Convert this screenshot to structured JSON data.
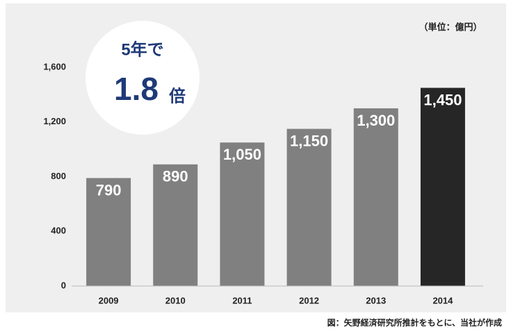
{
  "chart_data": {
    "type": "bar",
    "unit_label": "（単位：億円）",
    "annotation": {
      "line1": "5年で",
      "figure": "1.8",
      "suffix": "倍"
    },
    "source": "図：矢野経済研究所推計をもとに、当社が作成",
    "categories": [
      "2009",
      "2010",
      "2011",
      "2012",
      "2013",
      "2014"
    ],
    "values": [
      790,
      890,
      1050,
      1150,
      1300,
      1450
    ],
    "value_labels": [
      "790",
      "890",
      "1,050",
      "1,150",
      "1,300",
      "1,450"
    ],
    "colors": [
      "#808080",
      "#808080",
      "#808080",
      "#808080",
      "#808080",
      "#262626"
    ],
    "ylim": [
      0,
      1600
    ],
    "yticks": [
      0,
      400,
      800,
      {
        "value": 1200,
        "label": "1,200"
      },
      {
        "value": 1600,
        "label": "1,600"
      }
    ],
    "grid": false
  }
}
